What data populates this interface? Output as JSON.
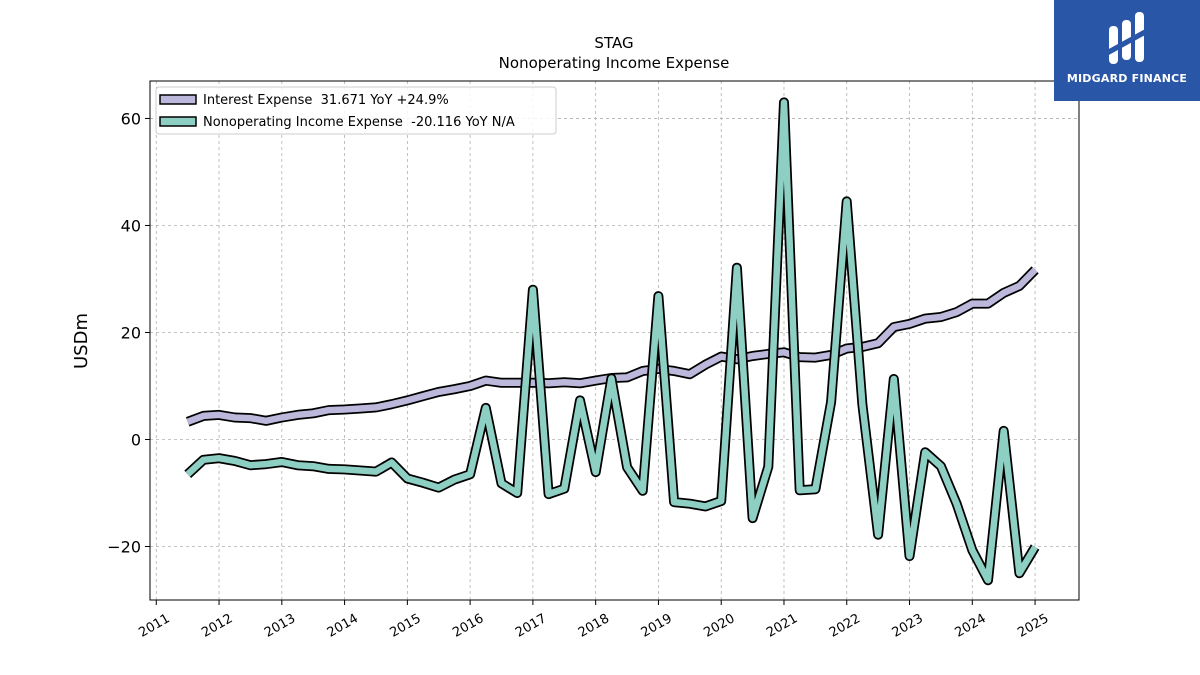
{
  "chart_data": {
    "type": "line",
    "title": "STAG",
    "subtitle": "Nonoperating Income Expense",
    "ylabel": "USDm",
    "xlabel": "",
    "xlim": [
      2010.9,
      2025.7
    ],
    "ylim": [
      -30,
      67
    ],
    "x_ticks": [
      "2011",
      "2012",
      "2013",
      "2014",
      "2015",
      "2016",
      "2017",
      "2018",
      "2019",
      "2020",
      "2021",
      "2022",
      "2023",
      "2024",
      "2025"
    ],
    "y_ticks": [
      -20,
      0,
      20,
      40,
      60
    ],
    "y_tick_labels": [
      "−20",
      "0",
      "20",
      "40",
      "60"
    ],
    "grid": true,
    "legend_position": "top-left",
    "series": [
      {
        "name": "Interest Expense  31.671 YoY +24.9%",
        "color": "#bcb8dc",
        "points": [
          [
            2011.5,
            3.3
          ],
          [
            2011.75,
            4.4
          ],
          [
            2012.0,
            4.6
          ],
          [
            2012.25,
            4.1
          ],
          [
            2012.5,
            4.0
          ],
          [
            2012.75,
            3.5
          ],
          [
            2013.0,
            4.1
          ],
          [
            2013.25,
            4.6
          ],
          [
            2013.5,
            4.9
          ],
          [
            2013.75,
            5.5
          ],
          [
            2014.0,
            5.6
          ],
          [
            2014.25,
            5.8
          ],
          [
            2014.5,
            6.0
          ],
          [
            2014.75,
            6.6
          ],
          [
            2015.0,
            7.3
          ],
          [
            2015.25,
            8.1
          ],
          [
            2015.5,
            8.9
          ],
          [
            2015.75,
            9.4
          ],
          [
            2016.0,
            10.0
          ],
          [
            2016.25,
            11.0
          ],
          [
            2016.5,
            10.6
          ],
          [
            2016.75,
            10.6
          ],
          [
            2017.0,
            10.6
          ],
          [
            2017.25,
            10.5
          ],
          [
            2017.5,
            10.7
          ],
          [
            2017.75,
            10.5
          ],
          [
            2018.0,
            11.0
          ],
          [
            2018.25,
            11.5
          ],
          [
            2018.5,
            11.6
          ],
          [
            2018.75,
            12.8
          ],
          [
            2019.0,
            13.2
          ],
          [
            2019.25,
            12.8
          ],
          [
            2019.5,
            12.2
          ],
          [
            2019.75,
            14.0
          ],
          [
            2020.0,
            15.5
          ],
          [
            2020.25,
            15.0
          ],
          [
            2020.5,
            15.6
          ],
          [
            2020.75,
            16.0
          ],
          [
            2021.0,
            16.3
          ],
          [
            2021.25,
            15.4
          ],
          [
            2021.5,
            15.3
          ],
          [
            2021.75,
            15.8
          ],
          [
            2022.0,
            17.0
          ],
          [
            2022.25,
            17.3
          ],
          [
            2022.5,
            18.0
          ],
          [
            2022.75,
            21.0
          ],
          [
            2023.0,
            21.6
          ],
          [
            2023.25,
            22.6
          ],
          [
            2023.5,
            22.9
          ],
          [
            2023.75,
            23.8
          ],
          [
            2024.0,
            25.4
          ],
          [
            2024.25,
            25.4
          ],
          [
            2024.5,
            27.4
          ],
          [
            2024.75,
            28.7
          ],
          [
            2025.0,
            31.7
          ]
        ]
      },
      {
        "name": "Nonoperating Income Expense  -20.116 YoY N/A",
        "color": "#8ecfc3",
        "points": [
          [
            2011.5,
            -6.5
          ],
          [
            2011.75,
            -3.8
          ],
          [
            2012.0,
            -3.5
          ],
          [
            2012.25,
            -4.0
          ],
          [
            2012.5,
            -4.8
          ],
          [
            2012.75,
            -4.6
          ],
          [
            2013.0,
            -4.2
          ],
          [
            2013.25,
            -4.8
          ],
          [
            2013.5,
            -5.0
          ],
          [
            2013.75,
            -5.5
          ],
          [
            2014.0,
            -5.6
          ],
          [
            2014.25,
            -5.8
          ],
          [
            2014.5,
            -6.0
          ],
          [
            2014.75,
            -4.3
          ],
          [
            2015.0,
            -7.3
          ],
          [
            2015.25,
            -8.1
          ],
          [
            2015.5,
            -9.0
          ],
          [
            2015.75,
            -7.5
          ],
          [
            2016.0,
            -6.5
          ],
          [
            2016.25,
            5.9
          ],
          [
            2016.5,
            -8.2
          ],
          [
            2016.75,
            -10.0
          ],
          [
            2017.0,
            28.0
          ],
          [
            2017.25,
            -10.2
          ],
          [
            2017.5,
            -9.2
          ],
          [
            2017.75,
            7.3
          ],
          [
            2018.0,
            -6.1
          ],
          [
            2018.25,
            11.4
          ],
          [
            2018.5,
            -5.2
          ],
          [
            2018.75,
            -9.6
          ],
          [
            2019.0,
            26.8
          ],
          [
            2019.25,
            -11.7
          ],
          [
            2019.5,
            -12.0
          ],
          [
            2019.75,
            -12.5
          ],
          [
            2020.0,
            -11.5
          ],
          [
            2020.25,
            32.1
          ],
          [
            2020.5,
            -14.7
          ],
          [
            2020.75,
            -5.1
          ],
          [
            2021.0,
            63.0
          ],
          [
            2021.25,
            -9.5
          ],
          [
            2021.5,
            -9.3
          ],
          [
            2021.75,
            7.0
          ],
          [
            2022.0,
            44.5
          ],
          [
            2022.25,
            6.5
          ],
          [
            2022.5,
            -17.8
          ],
          [
            2022.75,
            11.3
          ],
          [
            2023.0,
            -21.8
          ],
          [
            2023.25,
            -2.4
          ],
          [
            2023.5,
            -5.0
          ],
          [
            2023.75,
            -12.0
          ],
          [
            2024.0,
            -20.7
          ],
          [
            2024.25,
            -26.3
          ],
          [
            2024.5,
            1.6
          ],
          [
            2024.75,
            -25.0
          ],
          [
            2025.0,
            -20.1
          ]
        ]
      }
    ]
  },
  "logo": {
    "text": "MIDGARD FINANCE",
    "bg_color": "#2a56a8"
  }
}
